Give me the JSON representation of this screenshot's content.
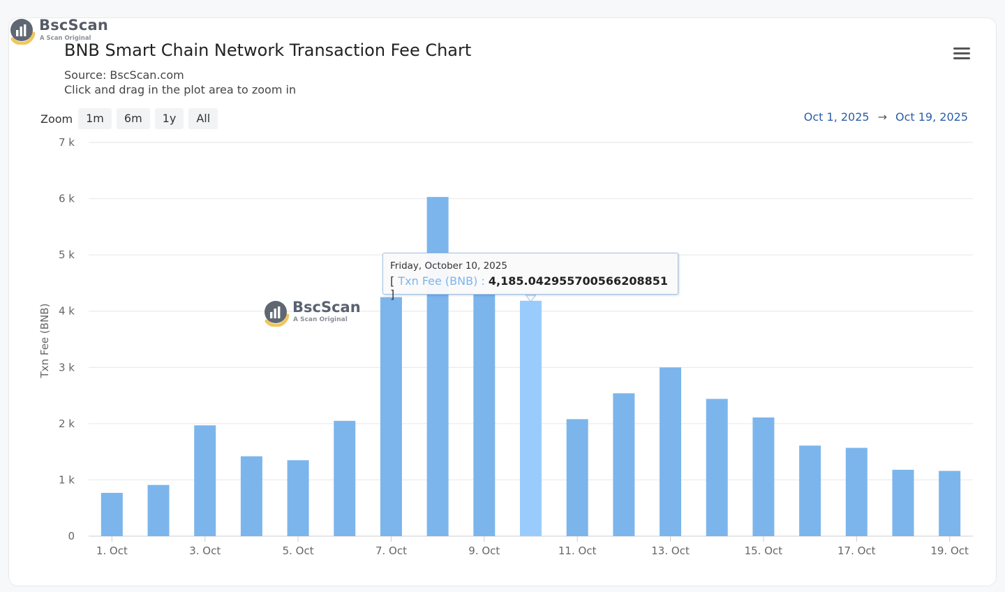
{
  "header": {
    "logo_text": "BscScan",
    "logo_sub": "A Scan Original",
    "title": "BNB Smart Chain Network Transaction Fee Chart",
    "source": "Source: BscScan.com",
    "hint": "Click and drag in the plot area to zoom in"
  },
  "toolbar": {
    "zoom_label": "Zoom",
    "buttons": [
      "1m",
      "6m",
      "1y",
      "All"
    ],
    "range_from": "Oct 1, 2025",
    "range_arrow": "→",
    "range_to": "Oct 19, 2025",
    "menu_icon": "hamburger-menu-icon"
  },
  "tooltip": {
    "date": "Friday, October 10, 2025",
    "open": "[",
    "series": "Txn Fee (BNB)",
    "sep": ":",
    "value": "4,185.042955700566208851",
    "close": "]"
  },
  "watermark": {
    "text": "BscScan",
    "sub": "A Scan Original"
  },
  "colors": {
    "bar": "#7cb5ec",
    "bar_highlight": "#99ccfd",
    "grid": "#e6e6e6",
    "link": "#2a5fa6"
  },
  "chart_data": {
    "type": "bar",
    "title": "BNB Smart Chain Network Transaction Fee Chart",
    "subtitle": "Source: BscScan.com",
    "xlabel": "",
    "ylabel": "Txn Fee (BNB)",
    "ylim": [
      0,
      7000
    ],
    "yticks": [
      0,
      1000,
      2000,
      3000,
      4000,
      5000,
      6000,
      7000
    ],
    "ytick_labels": [
      "0",
      "1 k",
      "2 k",
      "3 k",
      "4 k",
      "5 k",
      "6 k",
      "7 k"
    ],
    "grid": true,
    "categories": [
      "1. Oct",
      "2. Oct",
      "3. Oct",
      "4. Oct",
      "5. Oct",
      "6. Oct",
      "7. Oct",
      "8. Oct",
      "9. Oct",
      "10. Oct",
      "11. Oct",
      "12. Oct",
      "13. Oct",
      "14. Oct",
      "15. Oct",
      "16. Oct",
      "17. Oct",
      "18. Oct",
      "19. Oct"
    ],
    "xtick_labels": [
      "1. Oct",
      "",
      "3. Oct",
      "",
      "5. Oct",
      "",
      "7. Oct",
      "",
      "9. Oct",
      "",
      "11. Oct",
      "",
      "13. Oct",
      "",
      "15. Oct",
      "",
      "17. Oct",
      "",
      "19. Oct"
    ],
    "series": [
      {
        "name": "Txn Fee (BNB)",
        "values": [
          770,
          910,
          1970,
          1420,
          1350,
          2050,
          4250,
          6030,
          4310,
          4185.04,
          2080,
          2540,
          3000,
          2440,
          2110,
          1610,
          1570,
          1180,
          1160
        ]
      }
    ],
    "highlight_index": 9
  }
}
